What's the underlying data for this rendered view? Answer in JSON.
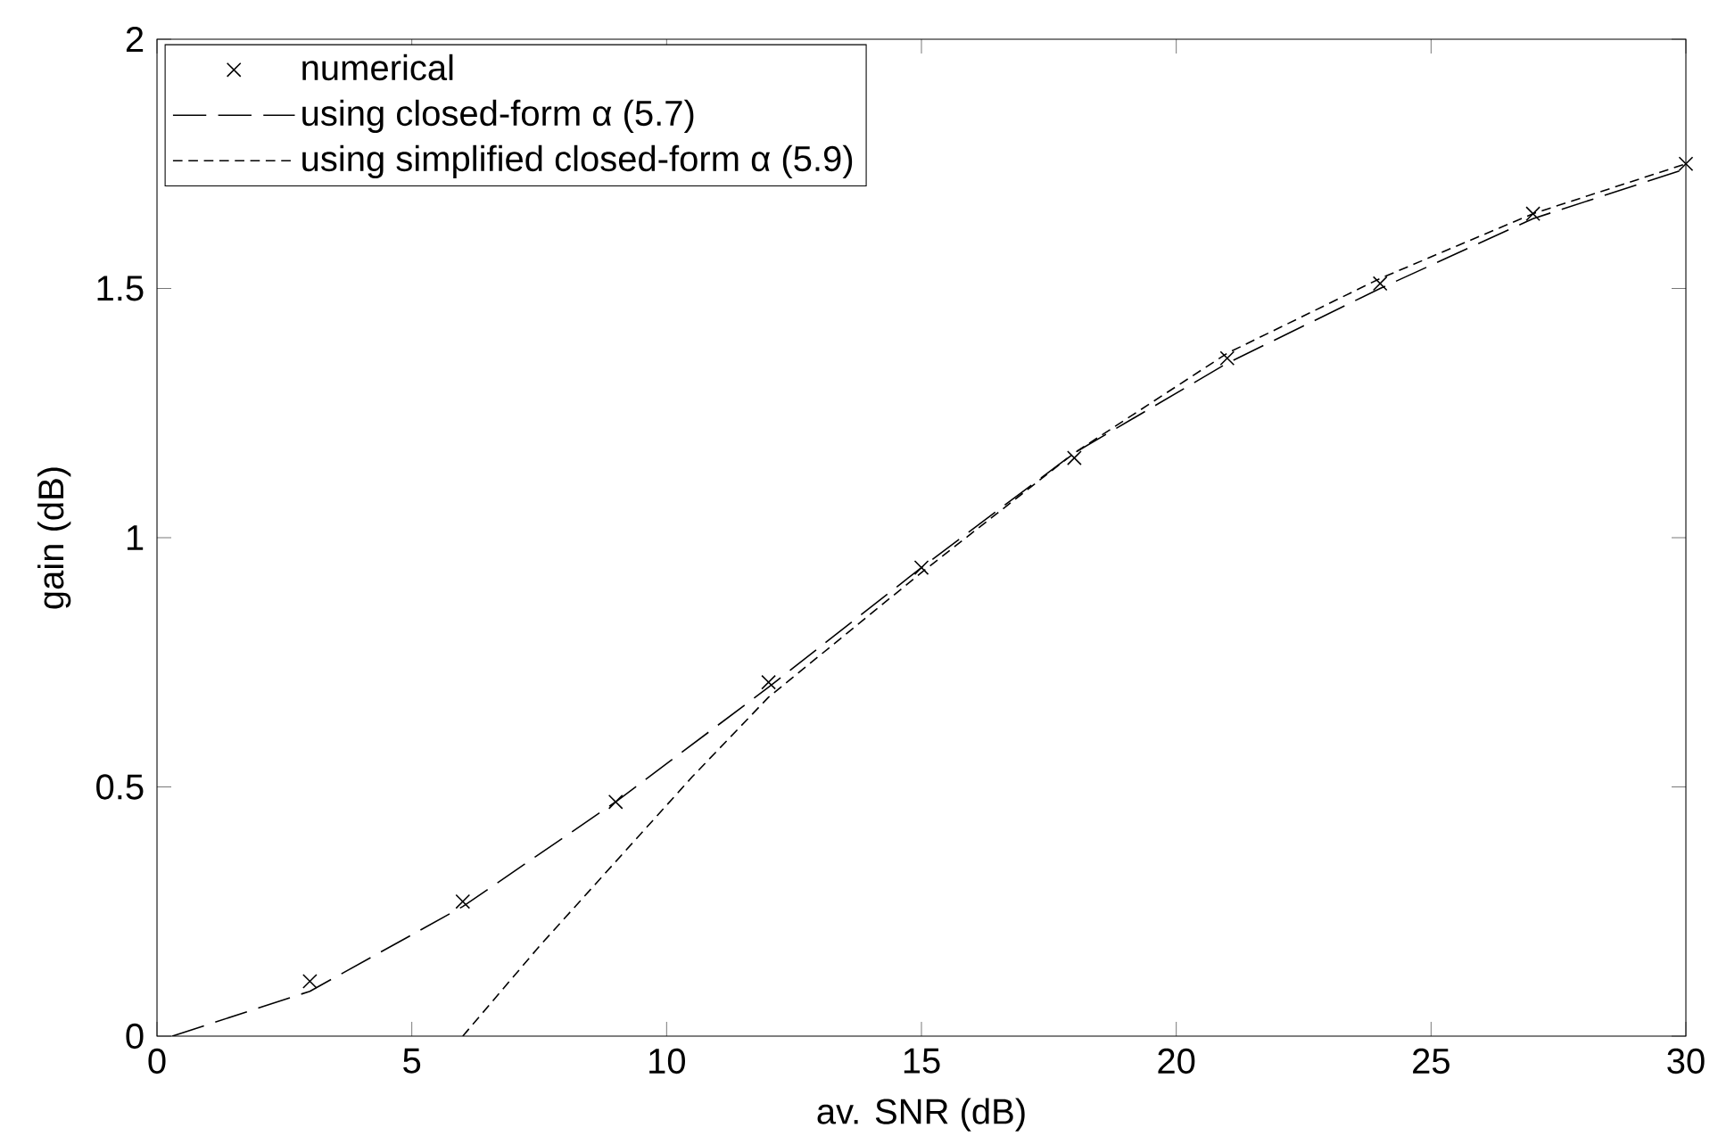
{
  "chart_data": {
    "type": "line",
    "xlabel": "av. SNR (dB)",
    "ylabel": "gain (dB)",
    "xlim": [
      0,
      30
    ],
    "ylim": [
      0,
      2
    ],
    "xticks": [
      0,
      5,
      10,
      15,
      20,
      25,
      30
    ],
    "yticks": [
      0,
      0.5,
      1,
      1.5,
      2
    ],
    "grid": false,
    "legend": "top left",
    "series": [
      {
        "name": "numerical",
        "type": "scatter",
        "marker": "cross",
        "color": "#000000",
        "x": [
          3,
          6,
          9,
          12,
          15,
          18,
          21,
          24,
          27,
          30
        ],
        "values": [
          0.11,
          0.27,
          0.47,
          0.71,
          0.94,
          1.16,
          1.36,
          1.51,
          1.65,
          1.75
        ]
      },
      {
        "name": "using closed-form α (5.7)",
        "marker": "none",
        "line_style": "dashed",
        "color": "#000000",
        "x": [
          0.3,
          3,
          6,
          9,
          12,
          15,
          18,
          21,
          24,
          27,
          30
        ],
        "values": [
          0,
          0.09,
          0.26,
          0.47,
          0.7,
          0.94,
          1.17,
          1.35,
          1.5,
          1.64,
          1.74
        ]
      },
      {
        "name": "using simplified closed-form α (5.9)",
        "marker": "none",
        "line_style": "dashed",
        "color": "#000000",
        "x": [
          6,
          7.5,
          9,
          10.5,
          12,
          15,
          18,
          21,
          24,
          27,
          30
        ],
        "values": [
          0,
          0.18,
          0.35,
          0.52,
          0.68,
          0.93,
          1.17,
          1.37,
          1.52,
          1.65,
          1.75
        ]
      }
    ]
  }
}
